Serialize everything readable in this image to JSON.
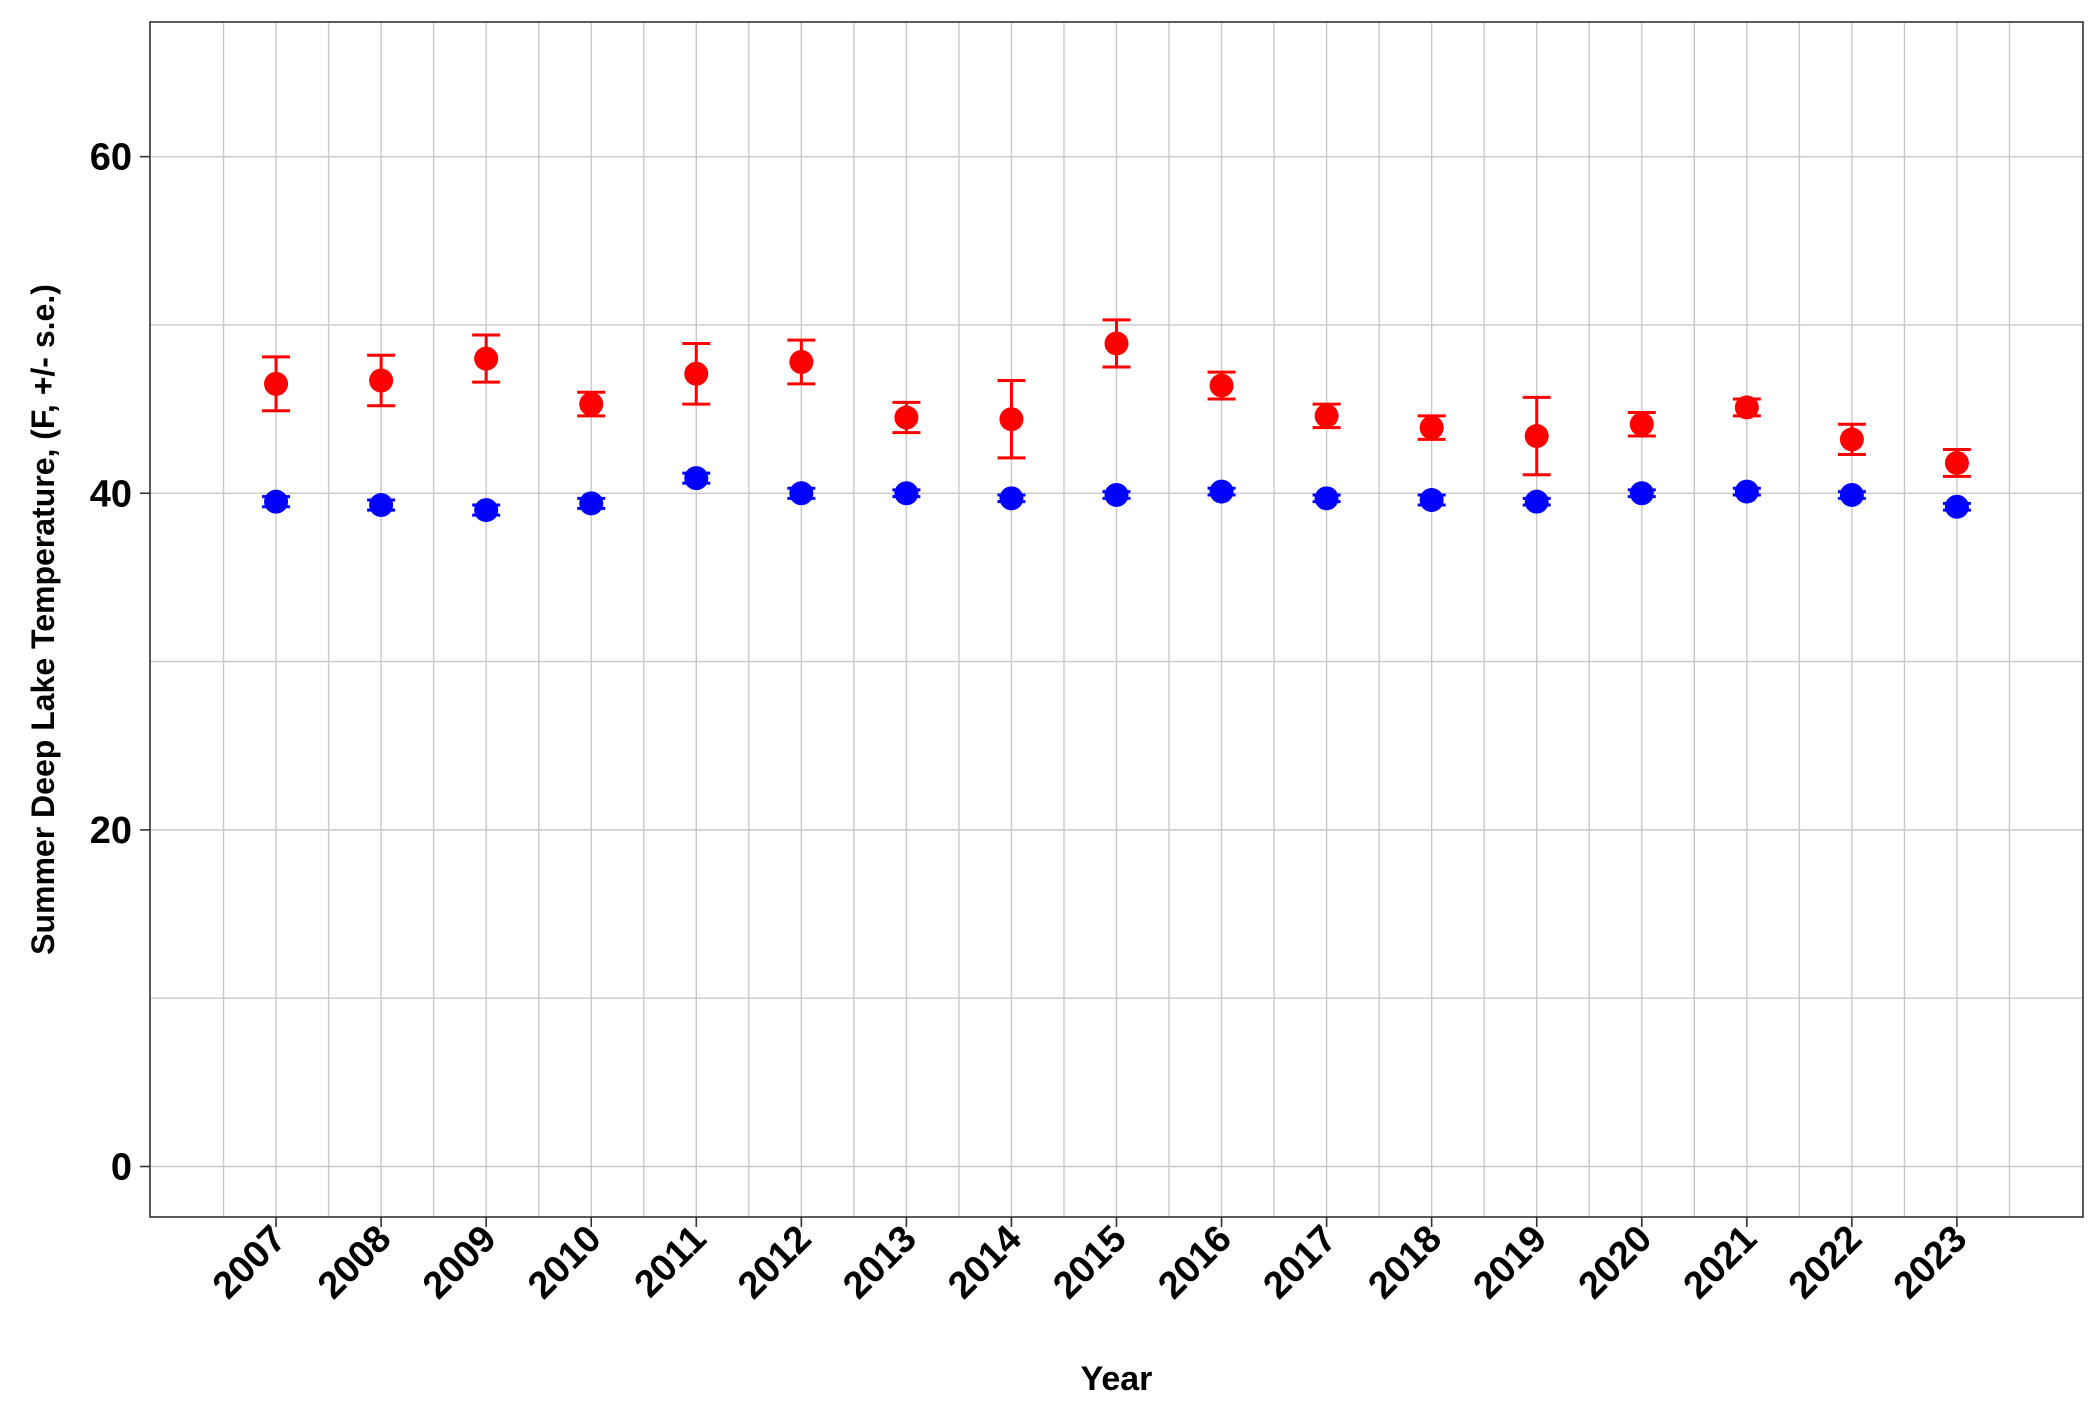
{
  "chart_data": {
    "type": "scatter",
    "title": "",
    "xlabel": "Year",
    "ylabel": "Summer Deep Lake Temperature, (F, +/- s.e.)",
    "categories": [
      "2007",
      "2008",
      "2009",
      "2010",
      "2011",
      "2012",
      "2013",
      "2014",
      "2015",
      "2016",
      "2017",
      "2018",
      "2019",
      "2020",
      "2021",
      "2022",
      "2023"
    ],
    "ylim": [
      -3,
      68
    ],
    "yticks": [
      0,
      20,
      40,
      60
    ],
    "yminor_grid": [
      10,
      30,
      50
    ],
    "grid": true,
    "legend": "none",
    "error_bars": "+/- s.e.",
    "series": [
      {
        "color": "#ff0000",
        "values": [
          46.5,
          46.7,
          48.0,
          45.3,
          47.1,
          47.8,
          44.5,
          44.4,
          48.9,
          46.4,
          44.6,
          43.9,
          43.4,
          44.1,
          45.1,
          43.2,
          41.8
        ],
        "se": [
          1.6,
          1.5,
          1.4,
          0.7,
          1.8,
          1.3,
          0.9,
          2.3,
          1.4,
          0.8,
          0.7,
          0.7,
          2.3,
          0.7,
          0.5,
          0.9,
          0.8
        ]
      },
      {
        "color": "#0000ff",
        "values": [
          39.5,
          39.3,
          39.0,
          39.4,
          40.9,
          40.0,
          40.0,
          39.7,
          39.9,
          40.1,
          39.7,
          39.6,
          39.5,
          40.0,
          40.1,
          39.9,
          39.2
        ],
        "se": [
          0.3,
          0.3,
          0.3,
          0.3,
          0.3,
          0.3,
          0.2,
          0.2,
          0.2,
          0.2,
          0.2,
          0.3,
          0.2,
          0.2,
          0.2,
          0.2,
          0.2
        ]
      }
    ]
  },
  "colors": {
    "panel_border": "#333333",
    "grid": "#c8c8c8",
    "text": "#000000"
  }
}
